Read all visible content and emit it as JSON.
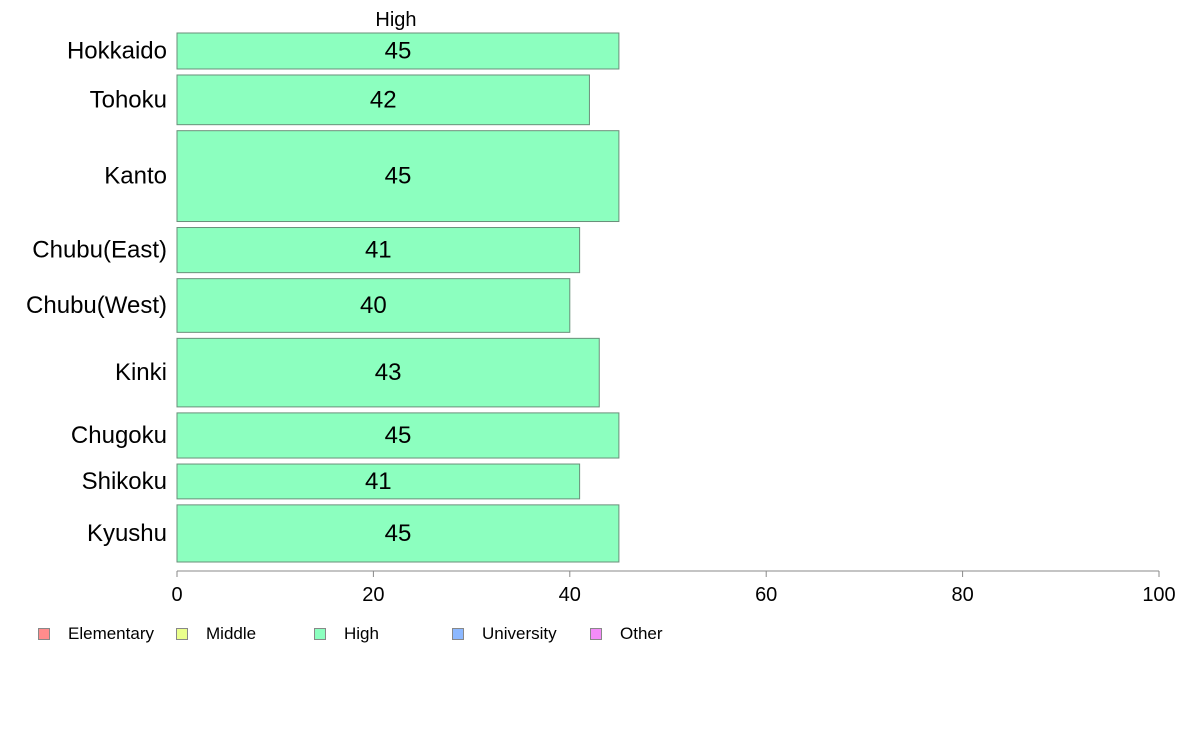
{
  "chart_data": {
    "type": "bar",
    "orientation": "horizontal",
    "series_header": "High",
    "categories": [
      "Hokkaido",
      "Tohoku",
      "Kanto",
      "Chubu(East)",
      "Chubu(West)",
      "Kinki",
      "Chugoku",
      "Shikoku",
      "Kyushu"
    ],
    "values": [
      45,
      42,
      45,
      41,
      40,
      43,
      45,
      41,
      45
    ],
    "bar_thickness_weight": [
      0.63,
      0.87,
      1.59,
      0.79,
      0.94,
      1.2,
      0.79,
      0.61,
      1.0
    ],
    "xlim": [
      0,
      100
    ],
    "xticks": [
      0,
      20,
      40,
      60,
      80,
      100
    ],
    "grid": false,
    "bar_color": "#8cffbf",
    "bar_border_color": "#6a8f7a",
    "legend_position": "bottom-left",
    "legend": [
      {
        "label": "Elementary",
        "color": "#ff8c8c"
      },
      {
        "label": "Middle",
        "color": "#eaff8c"
      },
      {
        "label": "High",
        "color": "#8cffbf"
      },
      {
        "label": "University",
        "color": "#8cb8ff"
      },
      {
        "label": "Other",
        "color": "#f38cf8"
      }
    ]
  }
}
